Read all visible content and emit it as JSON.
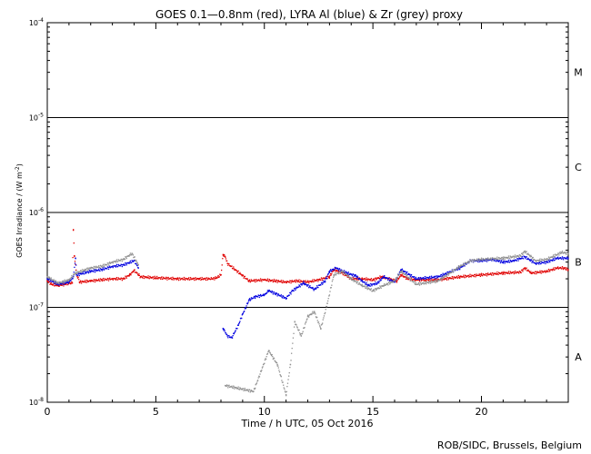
{
  "chart_data": {
    "type": "scatter",
    "title": "GOES 0.1—0.8nm (red), LYRA Al (blue) & Zr (grey) proxy",
    "xlabel": "Time / h UTC, 05 Oct 2016",
    "ylabel_main": "GOES Irradiance / (W m",
    "ylabel_exp": "-2",
    "ylabel_close": ")",
    "credit": "ROB/SIDC, Brussels, Belgium",
    "x_range": [
      0,
      24
    ],
    "x_ticks": [
      0,
      5,
      10,
      15,
      20
    ],
    "y_scale": "log",
    "y_range": [
      1e-08,
      0.0001
    ],
    "y_ticks": [
      {
        "base": "10",
        "exp": "-8",
        "value": 1e-08
      },
      {
        "base": "10",
        "exp": "-7",
        "value": 1e-07
      },
      {
        "base": "10",
        "exp": "-6",
        "value": 1e-06
      },
      {
        "base": "10",
        "exp": "-5",
        "value": 1e-05
      },
      {
        "base": "10",
        "exp": "-4",
        "value": 0.0001
      }
    ],
    "flare_class_lines": [
      1e-07,
      1e-06,
      1e-05
    ],
    "flare_classes": [
      {
        "label": "A",
        "y": 3e-08
      },
      {
        "label": "B",
        "y": 3e-07
      },
      {
        "label": "C",
        "y": 3e-06
      },
      {
        "label": "M",
        "y": 3e-05
      }
    ],
    "series": [
      {
        "key": "goes",
        "color": "#e00000",
        "points": [
          [
            0.0,
            1.9e-07
          ],
          [
            0.2,
            1.75e-07
          ],
          [
            0.5,
            1.7e-07
          ],
          [
            0.8,
            1.75e-07
          ],
          [
            1.0,
            1.8e-07
          ],
          [
            1.15,
            1.8e-07
          ],
          [
            1.2,
            6.5e-07
          ],
          [
            1.25,
            3.5e-07
          ],
          [
            1.35,
            2.2e-07
          ],
          [
            1.5,
            1.85e-07
          ],
          [
            2.0,
            1.9e-07
          ],
          [
            2.5,
            1.95e-07
          ],
          [
            3.0,
            2e-07
          ],
          [
            3.5,
            2e-07
          ],
          [
            3.8,
            2.2e-07
          ],
          [
            4.0,
            2.45e-07
          ],
          [
            4.3,
            2.1e-07
          ],
          [
            5.0,
            2.05e-07
          ],
          [
            6.0,
            2e-07
          ],
          [
            7.0,
            2e-07
          ],
          [
            7.6,
            2e-07
          ],
          [
            7.8,
            2.05e-07
          ],
          [
            8.0,
            2.2e-07
          ],
          [
            8.1,
            3.6e-07
          ],
          [
            8.2,
            3.4e-07
          ],
          [
            8.3,
            2.9e-07
          ],
          [
            9.3,
            1.9e-07
          ],
          [
            10.0,
            1.95e-07
          ],
          [
            10.5,
            1.9e-07
          ],
          [
            11.0,
            1.85e-07
          ],
          [
            11.5,
            1.9e-07
          ],
          [
            12.0,
            1.85e-07
          ],
          [
            12.5,
            1.95e-07
          ],
          [
            13.0,
            2.1e-07
          ],
          [
            13.2,
            2.5e-07
          ],
          [
            13.6,
            2.3e-07
          ],
          [
            14.0,
            2e-07
          ],
          [
            14.5,
            2e-07
          ],
          [
            15.0,
            1.95e-07
          ],
          [
            15.4,
            2.1e-07
          ],
          [
            16.1,
            1.9e-07
          ],
          [
            16.3,
            2.2e-07
          ],
          [
            16.6,
            2e-07
          ],
          [
            17.0,
            1.95e-07
          ],
          [
            18.0,
            1.95e-07
          ],
          [
            19.0,
            2.1e-07
          ],
          [
            20.0,
            2.2e-07
          ],
          [
            21.0,
            2.3e-07
          ],
          [
            21.8,
            2.35e-07
          ],
          [
            22.0,
            2.6e-07
          ],
          [
            22.3,
            2.3e-07
          ],
          [
            23.0,
            2.4e-07
          ],
          [
            23.5,
            2.6e-07
          ],
          [
            23.8,
            2.6e-07
          ],
          [
            24.0,
            2.5e-07
          ]
        ]
      },
      {
        "key": "lyra_al",
        "color": "#0000e0",
        "points": [
          [
            0.0,
            2e-07
          ],
          [
            0.5,
            1.75e-07
          ],
          [
            1.0,
            1.85e-07
          ],
          [
            1.2,
            2.1e-07
          ],
          [
            1.3,
            3.3e-07
          ],
          [
            1.35,
            2.2e-07
          ],
          [
            2.0,
            2.4e-07
          ],
          [
            2.5,
            2.5e-07
          ],
          [
            3.0,
            2.7e-07
          ],
          [
            3.5,
            2.8e-07
          ],
          [
            4.0,
            3.1e-07
          ],
          [
            4.2,
            2.6e-07
          ],
          [
            8.1,
            6e-08
          ],
          [
            8.3,
            5e-08
          ],
          [
            8.5,
            4.8e-08
          ],
          [
            8.8,
            6.5e-08
          ],
          [
            9.0,
            8.5e-08
          ],
          [
            9.3,
            1.2e-07
          ],
          [
            9.6,
            1.3e-07
          ],
          [
            10.0,
            1.35e-07
          ],
          [
            10.2,
            1.5e-07
          ],
          [
            10.5,
            1.4e-07
          ],
          [
            11.0,
            1.25e-07
          ],
          [
            11.3,
            1.5e-07
          ],
          [
            11.8,
            1.8e-07
          ],
          [
            12.3,
            1.55e-07
          ],
          [
            12.8,
            1.9e-07
          ],
          [
            13.0,
            2.4e-07
          ],
          [
            13.3,
            2.6e-07
          ],
          [
            13.8,
            2.3e-07
          ],
          [
            14.2,
            2.15e-07
          ],
          [
            14.5,
            1.9e-07
          ],
          [
            14.8,
            1.7e-07
          ],
          [
            15.2,
            1.8e-07
          ],
          [
            15.5,
            2.1e-07
          ],
          [
            16.0,
            1.85e-07
          ],
          [
            16.3,
            2.5e-07
          ],
          [
            16.7,
            2.2e-07
          ],
          [
            17.0,
            2e-07
          ],
          [
            18.0,
            2.1e-07
          ],
          [
            19.0,
            2.6e-07
          ],
          [
            19.5,
            3.1e-07
          ],
          [
            20.0,
            3.1e-07
          ],
          [
            20.5,
            3.2e-07
          ],
          [
            21.0,
            3e-07
          ],
          [
            21.5,
            3.1e-07
          ],
          [
            22.0,
            3.4e-07
          ],
          [
            22.5,
            2.9e-07
          ],
          [
            23.0,
            3e-07
          ],
          [
            23.5,
            3.3e-07
          ],
          [
            24.0,
            3.3e-07
          ]
        ]
      },
      {
        "key": "lyra_zr",
        "color": "#909090",
        "points": [
          [
            0.0,
            2.1e-07
          ],
          [
            0.5,
            1.8e-07
          ],
          [
            1.0,
            1.95e-07
          ],
          [
            1.3,
            2.3e-07
          ],
          [
            2.0,
            2.6e-07
          ],
          [
            2.5,
            2.7e-07
          ],
          [
            3.0,
            3e-07
          ],
          [
            3.5,
            3.2e-07
          ],
          [
            3.9,
            3.7e-07
          ],
          [
            4.2,
            2.8e-07
          ],
          [
            8.2,
            1.5e-08
          ],
          [
            9.5,
            1.3e-08
          ],
          [
            10.2,
            3.5e-08
          ],
          [
            10.6,
            2.5e-08
          ],
          [
            11.0,
            1.2e-08
          ],
          [
            11.2,
            2.5e-08
          ],
          [
            11.4,
            7e-08
          ],
          [
            11.7,
            5e-08
          ],
          [
            12.0,
            8e-08
          ],
          [
            12.3,
            9e-08
          ],
          [
            12.6,
            6e-08
          ],
          [
            12.9,
            1.1e-07
          ],
          [
            13.2,
            2.2e-07
          ],
          [
            13.6,
            2.4e-07
          ],
          [
            14.0,
            2e-07
          ],
          [
            14.5,
            1.7e-07
          ],
          [
            15.0,
            1.5e-07
          ],
          [
            15.5,
            1.7e-07
          ],
          [
            16.0,
            1.9e-07
          ],
          [
            16.3,
            2.4e-07
          ],
          [
            16.7,
            2e-07
          ],
          [
            17.0,
            1.75e-07
          ],
          [
            18.0,
            1.9e-07
          ],
          [
            19.0,
            2.7e-07
          ],
          [
            19.5,
            3.1e-07
          ],
          [
            20.0,
            3.2e-07
          ],
          [
            21.0,
            3.3e-07
          ],
          [
            21.8,
            3.5e-07
          ],
          [
            22.0,
            3.9e-07
          ],
          [
            22.5,
            3.1e-07
          ],
          [
            23.0,
            3.2e-07
          ],
          [
            23.7,
            3.8e-07
          ],
          [
            24.0,
            3.7e-07
          ]
        ]
      }
    ]
  }
}
